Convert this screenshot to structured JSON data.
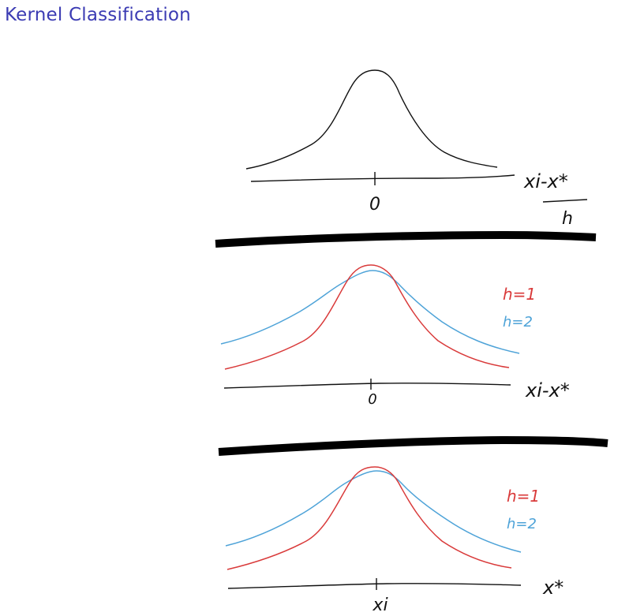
{
  "title": "Kernel Classification",
  "colors": {
    "title": "#3b3bb3",
    "ink": "#111111",
    "h1_curve": "#d93a3a",
    "h2_curve": "#4ea3d8"
  },
  "panel1": {
    "origin_label": "0",
    "axis_label_numerator": "xi-x*",
    "axis_label_denominator": "h"
  },
  "panel2": {
    "origin_label": "0",
    "axis_label": "xi-x*",
    "legend": {
      "h1": "h=1",
      "h2": "h=2"
    }
  },
  "panel3": {
    "center_label": "xi",
    "axis_label": "x*",
    "legend": {
      "h1": "h=1",
      "h2": "h=2"
    }
  }
}
